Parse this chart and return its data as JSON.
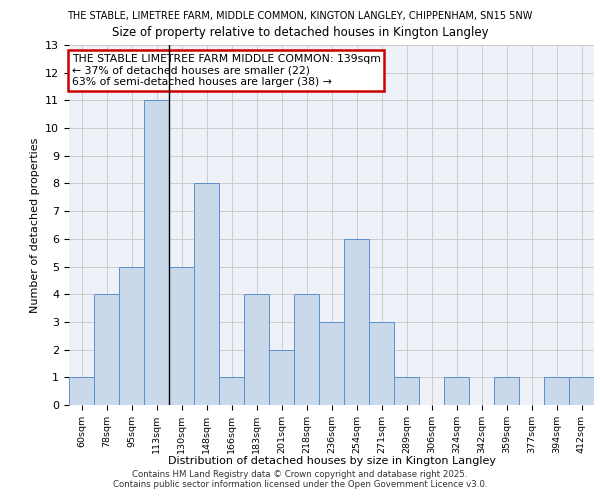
{
  "title_top": "THE STABLE, LIMETREE FARM, MIDDLE COMMON, KINGTON LANGLEY, CHIPPENHAM, SN15 5NW",
  "title_sub": "Size of property relative to detached houses in Kington Langley",
  "xlabel": "Distribution of detached houses by size in Kington Langley",
  "ylabel": "Number of detached properties",
  "categories": [
    "60sqm",
    "78sqm",
    "95sqm",
    "113sqm",
    "130sqm",
    "148sqm",
    "166sqm",
    "183sqm",
    "201sqm",
    "218sqm",
    "236sqm",
    "254sqm",
    "271sqm",
    "289sqm",
    "306sqm",
    "324sqm",
    "342sqm",
    "359sqm",
    "377sqm",
    "394sqm",
    "412sqm"
  ],
  "values": [
    1,
    4,
    5,
    11,
    5,
    8,
    1,
    4,
    2,
    4,
    3,
    6,
    3,
    1,
    0,
    1,
    0,
    1,
    0,
    1,
    1
  ],
  "bar_color": "#c9d9ea",
  "bar_edge_color": "#5b8fcc",
  "highlight_line_index": 4,
  "highlight_line_color": "#000000",
  "annotation_text": "THE STABLE LIMETREE FARM MIDDLE COMMON: 139sqm\n← 37% of detached houses are smaller (22)\n63% of semi-detached houses are larger (38) →",
  "annotation_box_color": "#ffffff",
  "annotation_border_color": "#cc0000",
  "ylim": [
    0,
    13
  ],
  "yticks": [
    0,
    1,
    2,
    3,
    4,
    5,
    6,
    7,
    8,
    9,
    10,
    11,
    12,
    13
  ],
  "grid_color": "#cccccc",
  "bg_color": "#eef2f8",
  "footer1": "Contains HM Land Registry data © Crown copyright and database right 2025.",
  "footer2": "Contains public sector information licensed under the Open Government Licence v3.0."
}
